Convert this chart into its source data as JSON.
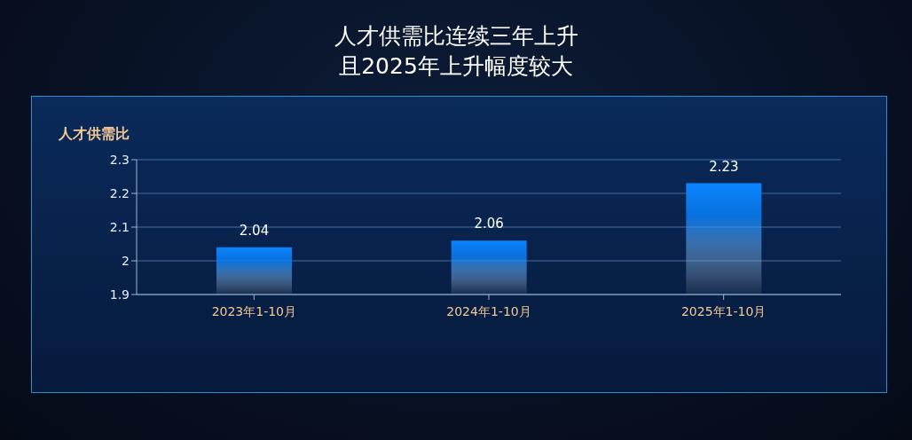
{
  "chart_data": {
    "type": "bar",
    "title": "人才供需比连续三年上升",
    "subtitle": "且2025年上升幅度较大",
    "ylabel": "人才供需比",
    "categories": [
      "2023年1-10月",
      "2024年1-10月",
      "2025年1-10月"
    ],
    "values": [
      2.04,
      2.06,
      2.23
    ],
    "color": "#0a84ff",
    "ylim": [
      1.9,
      2.3
    ],
    "yticks": [
      1.9,
      2,
      2.1,
      2.2,
      2.3
    ],
    "grid": "y",
    "data_labels": true
  }
}
